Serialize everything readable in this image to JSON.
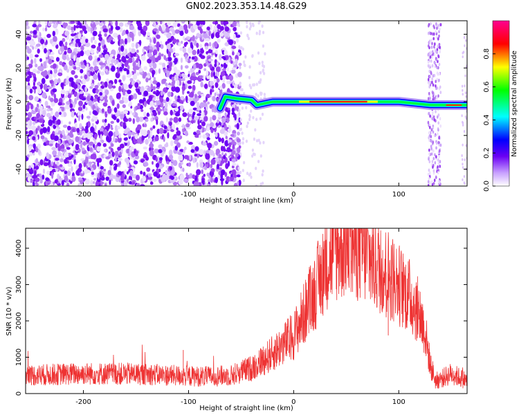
{
  "title": "GN02.2023.353.14.48.G29",
  "chart_data": [
    {
      "type": "heatmap",
      "xlabel": "Height of straight line (km)",
      "ylabel": "Frequency (Hz)",
      "xlim": [
        -255,
        165
      ],
      "ylim": [
        -50,
        48
      ],
      "xticks": [
        -200,
        -100,
        0,
        100
      ],
      "yticks": [
        -40,
        -20,
        0,
        20,
        40
      ],
      "colorbar": {
        "label": "Normalized spectral amplitude",
        "range": [
          0,
          1
        ],
        "ticks": [
          "0.0",
          "0.2",
          "0.4",
          "0.6",
          "0.8"
        ],
        "colors": [
          "#ffffff",
          "#6a00f4",
          "#0000ff",
          "#00ffff",
          "#00ff00",
          "#ffff00",
          "#ff0000",
          "#ff00a0"
        ]
      },
      "noise_region_x": [
        -255,
        -60
      ],
      "signal_track": [
        {
          "x": -70,
          "f": -4
        },
        {
          "x": -65,
          "f": 3
        },
        {
          "x": -55,
          "f": 2
        },
        {
          "x": -40,
          "f": 1
        },
        {
          "x": -35,
          "f": -2
        },
        {
          "x": -20,
          "f": 0
        },
        {
          "x": 0,
          "f": 0
        },
        {
          "x": 50,
          "f": 0
        },
        {
          "x": 100,
          "f": 0
        },
        {
          "x": 130,
          "f": -2
        },
        {
          "x": 165,
          "f": -2
        }
      ],
      "grid": false
    },
    {
      "type": "line",
      "xlabel": "Height of straight line (km)",
      "ylabel": "SNR (10 * v/v)",
      "xlim": [
        -255,
        165
      ],
      "ylim": [
        0,
        4550
      ],
      "xticks": [
        -200,
        -100,
        0,
        100
      ],
      "yticks": [
        0,
        1000,
        2000,
        3000,
        4000
      ],
      "color": "#ee3333",
      "x": [
        -255,
        -200,
        -150,
        -100,
        -80,
        -60,
        -40,
        -20,
        0,
        20,
        30,
        40,
        50,
        60,
        70,
        80,
        90,
        100,
        110,
        120,
        125,
        130,
        135,
        140,
        150,
        165
      ],
      "y": [
        500,
        550,
        540,
        480,
        470,
        500,
        700,
        1100,
        1600,
        2800,
        3600,
        4000,
        4100,
        4050,
        3800,
        3500,
        3300,
        3000,
        2700,
        2200,
        1700,
        800,
        350,
        400,
        550,
        350
      ],
      "grid": false
    }
  ]
}
